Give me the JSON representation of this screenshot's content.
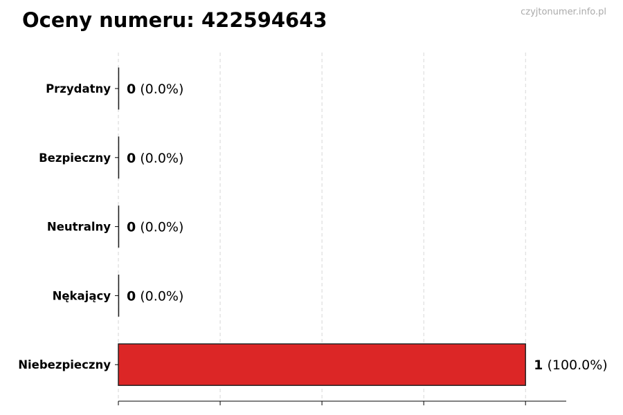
{
  "chart_data": {
    "type": "bar",
    "orientation": "horizontal",
    "title": "Oceny numeru: 422594643",
    "watermark": "czyjtonumer.info.pl",
    "categories": [
      "Przydatny",
      "Bezpieczny",
      "Neutralny",
      "Nękający",
      "Niebezpieczny"
    ],
    "values": [
      0,
      0,
      0,
      0,
      1
    ],
    "value_labels": [
      "(0.0%)",
      "(0.0%)",
      "(0.0%)",
      "(0.0%)",
      "(100.0%)"
    ],
    "xlim": [
      0,
      1.1
    ],
    "xticks": [
      0,
      0.25,
      0.5,
      0.75,
      1
    ],
    "grid": "x-dashed",
    "bar_color": "#dc2626",
    "edge_color": "#222222"
  }
}
